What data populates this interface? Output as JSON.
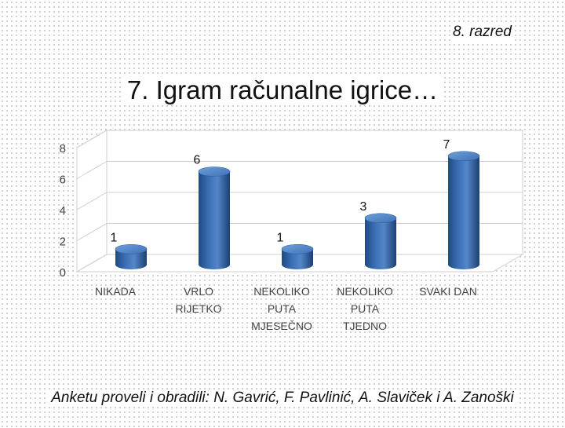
{
  "header": {
    "grade": "8. razred"
  },
  "chart_data": {
    "type": "bar",
    "title": "7. Igram računalne igrice…",
    "categories": [
      [
        "NIKADA"
      ],
      [
        "VRLO",
        "RIJETKO"
      ],
      [
        "NEKOLIKO",
        "PUTA",
        "MJESEČNO"
      ],
      [
        "NEKOLIKO",
        "PUTA",
        "TJEDNO"
      ],
      [
        "SVAKI DAN"
      ]
    ],
    "values": [
      1,
      6,
      1,
      3,
      7
    ],
    "ylim": [
      0,
      8
    ],
    "yticks": [
      0,
      2,
      4,
      6,
      8
    ],
    "xlabel": "",
    "ylabel": "",
    "grid": true,
    "style": "3d-cylinder",
    "bar_color": "#4a7ebb",
    "bar_top_color": "#5b8fd0"
  },
  "footer": {
    "credits": "Anketu proveli i obradili: N. Gavrić, F. Pavlinić, A. Slaviček i A. Zanoški"
  }
}
